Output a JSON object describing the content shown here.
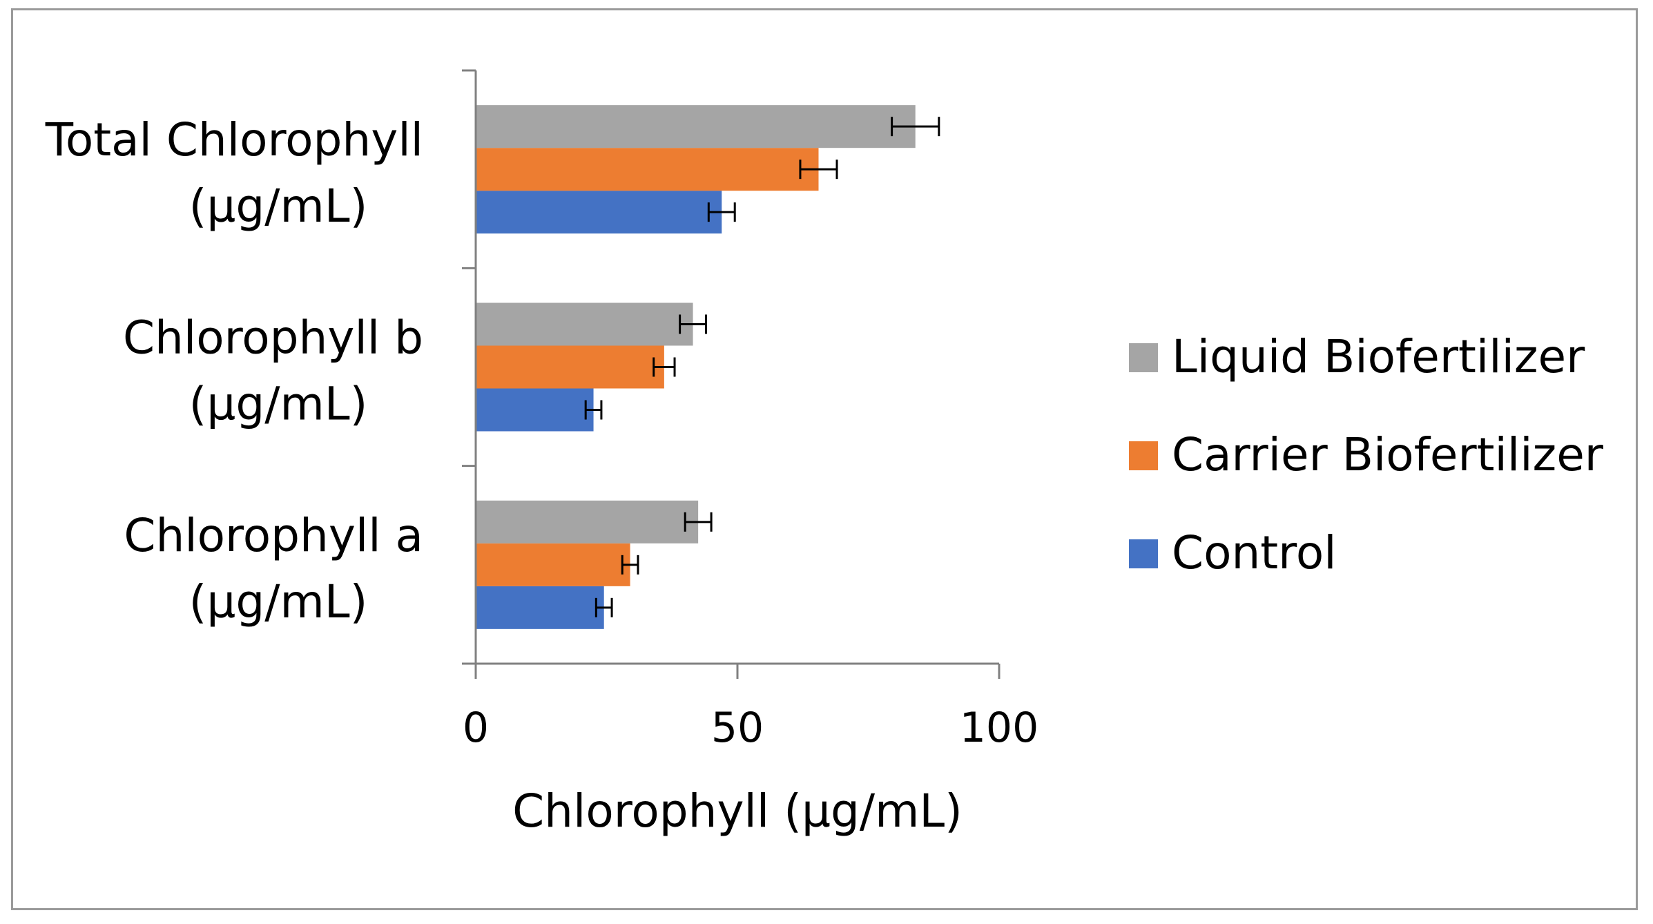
{
  "chart_data": {
    "type": "bar",
    "orientation": "horizontal",
    "title": "",
    "xlabel": "Chlorophyll (µg/mL)",
    "ylabel": "",
    "xlim": [
      0,
      100
    ],
    "xticks": [
      0,
      50,
      100
    ],
    "grid": false,
    "legend_position": "right",
    "categories": [
      {
        "line1": "Chlorophyll a",
        "line2": "(µg/mL)"
      },
      {
        "line1": "Chlorophyll b",
        "line2": "(µg/mL)"
      },
      {
        "line1": "Total Chlorophyll",
        "line2": "(µg/mL)"
      }
    ],
    "series": [
      {
        "name": "Control",
        "color": "#4472c4",
        "values": [
          24.5,
          22.5,
          47
        ],
        "errors": [
          1.5,
          1.5,
          2.5
        ]
      },
      {
        "name": "Carrier Biofertilizer",
        "color": "#ed7d31",
        "values": [
          29.5,
          36,
          65.5
        ],
        "errors": [
          1.5,
          2,
          3.5
        ]
      },
      {
        "name": "Liquid Biofertilizer",
        "color": "#a5a5a5",
        "values": [
          42.5,
          41.5,
          84
        ],
        "errors": [
          2.5,
          2.5,
          4.5
        ]
      }
    ]
  }
}
